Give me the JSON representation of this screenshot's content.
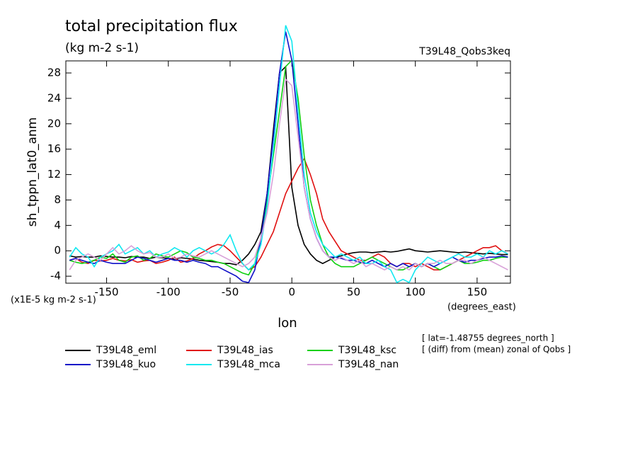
{
  "chart_data": {
    "type": "line",
    "title": "total precipitation flux",
    "subtitle": "(kg m-2 s-1)",
    "dataset_label": "T39L48_Qobs3keq",
    "y_label": "sh_tppn_lat0_anm",
    "y_units": "(x1E-5 kg m-2 s-1)",
    "x_label": "lon",
    "x_units": "(degrees_east)",
    "notes": [
      "[ lat=-1.48755 degrees_north ]",
      "[ (diff) from (mean) zonal of Qobs ]"
    ],
    "xlim": [
      -183,
      177
    ],
    "xticks": [
      -150,
      -100,
      -50,
      0,
      50,
      100,
      150
    ],
    "ylim": [
      -5.1,
      29.9
    ],
    "yticks": [
      -4,
      0,
      4,
      8,
      12,
      16,
      20,
      24,
      28
    ],
    "x": [
      -180,
      -175,
      -170,
      -165,
      -160,
      -155,
      -150,
      -145,
      -140,
      -135,
      -130,
      -125,
      -120,
      -115,
      -110,
      -105,
      -100,
      -95,
      -90,
      -85,
      -80,
      -75,
      -70,
      -65,
      -60,
      -55,
      -50,
      -45,
      -40,
      -35,
      -30,
      -25,
      -20,
      -15,
      -10,
      -5,
      0,
      5,
      10,
      15,
      20,
      25,
      30,
      35,
      40,
      45,
      50,
      55,
      60,
      65,
      70,
      75,
      80,
      85,
      90,
      95,
      100,
      105,
      110,
      115,
      120,
      125,
      130,
      135,
      140,
      145,
      150,
      155,
      160,
      165,
      170,
      175
    ],
    "series": [
      {
        "name": "T39L48_eml",
        "color": "#000000",
        "values": [
          -0.8,
          -1,
          -0.9,
          -1,
          -1,
          -0.8,
          -0.9,
          -1,
          -1,
          -1.1,
          -0.9,
          -1,
          -1,
          -1.2,
          -1,
          -1.1,
          -1.2,
          -1.3,
          -1.1,
          -1.2,
          -1.3,
          -1.5,
          -1.6,
          -1.7,
          -1.8,
          -2,
          -2,
          -2.2,
          -1.5,
          -0.5,
          1,
          3,
          9,
          19,
          28,
          29,
          10,
          4,
          1,
          -0.5,
          -1.5,
          -2,
          -1.5,
          -1,
          -0.8,
          -0.5,
          -0.3,
          -0.2,
          -0.2,
          -0.3,
          -0.2,
          -0.1,
          -0.2,
          -0.1,
          0.1,
          0.3,
          0,
          -0.1,
          -0.2,
          -0.1,
          0,
          -0.1,
          -0.2,
          -0.3,
          -0.2,
          -0.3,
          -0.4,
          -0.5,
          -0.4,
          -0.5,
          -0.6,
          -0.6
        ]
      },
      {
        "name": "T39L48_ias",
        "color": "#e01010",
        "values": [
          -1.5,
          -1.2,
          -1.8,
          -2,
          -1.5,
          -1.6,
          -1.5,
          -1.2,
          -1.5,
          -1.6,
          -1.4,
          -1.8,
          -1.6,
          -1.5,
          -2,
          -1.8,
          -1.5,
          -1,
          -1.8,
          -1.6,
          -1.2,
          -0.5,
          0,
          0.6,
          1,
          0.8,
          0,
          -1,
          -2,
          -3,
          -2.5,
          -1,
          1,
          3,
          6,
          9,
          11,
          13,
          14.5,
          12,
          9,
          5,
          3,
          1.5,
          0,
          -0.5,
          -1,
          -1.5,
          -1.5,
          -1,
          -0.5,
          -1,
          -2,
          -2.5,
          -2,
          -2,
          -2.5,
          -2,
          -2.5,
          -3,
          -3,
          -2.5,
          -2,
          -1.5,
          -1,
          -0.5,
          0,
          0.5,
          0.5,
          0.8,
          0,
          -0.5
        ]
      },
      {
        "name": "T39L48_ksc",
        "color": "#10d010",
        "values": [
          -1.5,
          -1.8,
          -2,
          -1.8,
          -1.5,
          -1,
          -1.2,
          -0.5,
          -1.5,
          -1.8,
          -1,
          -0.8,
          -1.5,
          -1.2,
          -0.5,
          -0.8,
          -1,
          -0.5,
          0,
          -0.3,
          -1,
          -1.2,
          -1.5,
          -1.5,
          -1.8,
          -2,
          -2.5,
          -3,
          -3.5,
          -3.8,
          -2,
          2,
          8,
          15,
          22,
          29,
          30,
          24,
          15,
          8,
          4,
          1,
          -1,
          -2,
          -2.5,
          -2.5,
          -2.5,
          -2,
          -1.5,
          -1,
          -1.5,
          -2,
          -2.5,
          -3,
          -3,
          -2.5,
          -2,
          -2.5,
          -2,
          -2.5,
          -3,
          -2.5,
          -2,
          -1.5,
          -2,
          -2,
          -1.8,
          -1.5,
          -1.5,
          -1.2,
          -1,
          -1
        ]
      },
      {
        "name": "T39L48_kuo",
        "color": "#1010c8",
        "values": [
          -1.5,
          -1.2,
          -1.5,
          -1.8,
          -2,
          -1.5,
          -1.8,
          -2,
          -2,
          -2,
          -1.5,
          -1,
          -1.2,
          -1.5,
          -1.8,
          -1.5,
          -1.2,
          -1.5,
          -1.5,
          -1.8,
          -1.5,
          -1.8,
          -2,
          -2.5,
          -2.5,
          -3,
          -3.5,
          -4,
          -4.8,
          -5,
          -3,
          2,
          9,
          18,
          28,
          34.5,
          30,
          20,
          10,
          5,
          2,
          0,
          -1,
          -1,
          -1.2,
          -1.5,
          -1.5,
          -1.8,
          -2,
          -1.5,
          -2,
          -2.5,
          -2,
          -2.5,
          -2,
          -2.5,
          -2,
          -2.5,
          -2,
          -2.5,
          -2,
          -1.5,
          -1,
          -1.5,
          -1.8,
          -1.5,
          -1.5,
          -1.2,
          -1,
          -1,
          -0.8,
          -1
        ]
      },
      {
        "name": "T39L48_mca",
        "color": "#10e8f0",
        "values": [
          -1,
          0.5,
          -0.5,
          -1,
          -2.5,
          -1,
          -0.5,
          0,
          1,
          -0.5,
          0,
          0.5,
          -0.5,
          0,
          -1,
          -0.5,
          -0.2,
          0.5,
          0,
          -1,
          0,
          0.5,
          0,
          -0.5,
          0,
          1,
          2.5,
          0,
          -2,
          -3,
          -2,
          1,
          7,
          16,
          26,
          35.5,
          33,
          22,
          12,
          6,
          3,
          1,
          0,
          -1,
          -0.5,
          -1,
          -1.5,
          -1,
          -2,
          -2,
          -1.5,
          -2.5,
          -3,
          -5,
          -4.5,
          -5,
          -3,
          -2,
          -1,
          -1.5,
          -2,
          -1.5,
          -1,
          -0.5,
          -1,
          -1,
          -0.5,
          -1,
          0,
          -0.5,
          0,
          -0.5
        ]
      },
      {
        "name": "T39L48_nan",
        "color": "#d8a0d8",
        "values": [
          -3,
          -1.5,
          -1,
          -0.5,
          -1,
          -1.5,
          -0.5,
          0.5,
          -0.5,
          0,
          0.8,
          0,
          -0.5,
          -0.3,
          -1,
          -1,
          -0.5,
          -1.2,
          -1,
          -0.5,
          -0.8,
          -1,
          -0.5,
          0,
          -0.5,
          -1,
          -1.5,
          -2,
          -2.5,
          -2,
          -1,
          2,
          6,
          12,
          20,
          27,
          26,
          18,
          10,
          5,
          2,
          0,
          -1,
          -1.5,
          -1,
          -1.5,
          -2,
          -1.5,
          -2.5,
          -2,
          -2.5,
          -3,
          -2.5,
          -3,
          -2.5,
          -3,
          -2,
          -2.5,
          -2,
          -2,
          -1.5,
          -2,
          -2,
          -1.5,
          -1.5,
          -2,
          -1.5,
          -1,
          -1.5,
          -2,
          -2.5,
          -3
        ]
      }
    ]
  }
}
